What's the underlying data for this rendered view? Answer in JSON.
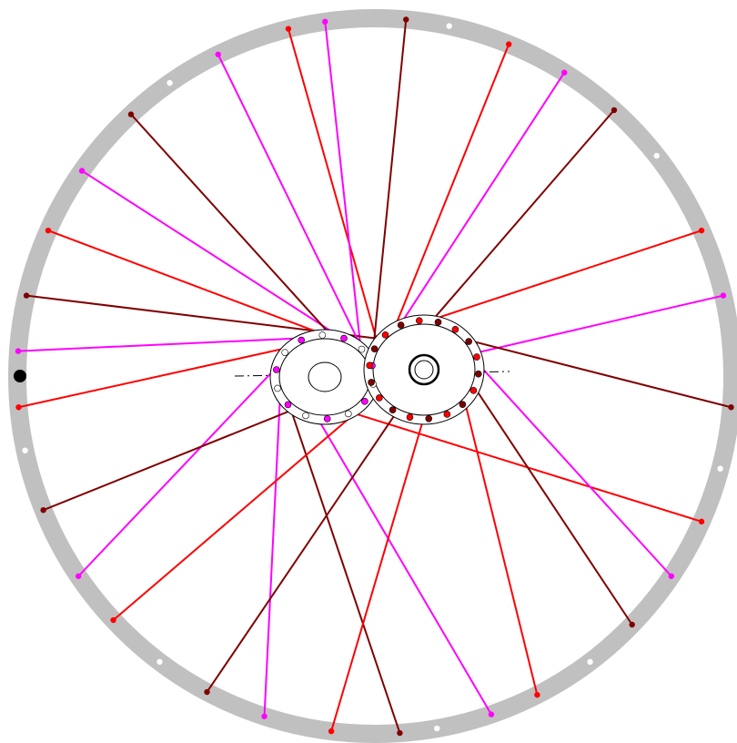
{
  "diagram": {
    "kind": "bicycle-wheel-spoke-lacing",
    "colors": {
      "rim": "#c0c0c0",
      "hub_outline": "#000000",
      "spoke_red": "#ff0000",
      "spoke_darkred": "#800000",
      "spoke_magenta": "#ff00ff",
      "unused_hole": "#ffffff",
      "valve_hole": "#000000"
    }
  }
}
